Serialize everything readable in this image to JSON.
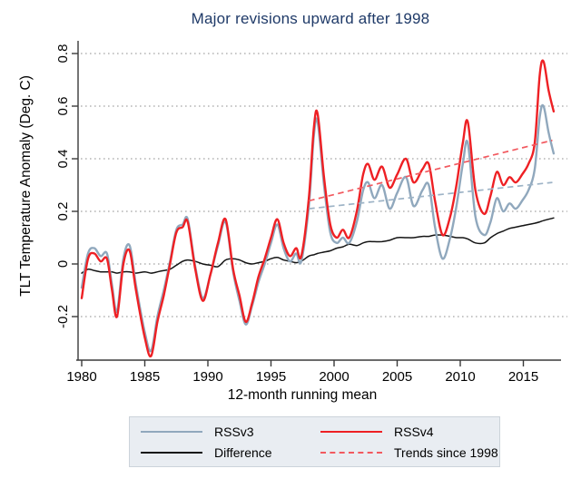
{
  "colors": {
    "title": "#1f3a68",
    "rssv3": "#90a8bd",
    "rssv4": "#ee2024",
    "difference": "#141414",
    "trend_v4": "#f2595f",
    "trend_v3": "#9db3c6",
    "grid": "#8f8f8f",
    "axis": "#3a3a3a",
    "legend_bg": "#e9edf2",
    "legend_border": "#ccd3da"
  },
  "legend": {
    "items": [
      {
        "label": "RSSv3",
        "color_key": "rssv3",
        "style": "solid"
      },
      {
        "label": "RSSv4",
        "color_key": "rssv4",
        "style": "solid"
      },
      {
        "label": "Difference",
        "color_key": "difference",
        "style": "solid"
      },
      {
        "label": "Trends since 1998",
        "color_key": "trend_v4",
        "style": "dashed"
      }
    ]
  },
  "chart_data": {
    "type": "line",
    "title": "Major revisions upward after 1998",
    "xlabel": "12-month running mean",
    "ylabel": "TLT Temperature Anomaly (Deg. C)",
    "x_ticks": [
      1980,
      1985,
      1990,
      1995,
      2000,
      2005,
      2010,
      2015
    ],
    "y_ticks": [
      -0.2,
      0,
      0.2,
      0.4,
      0.6,
      0.8
    ],
    "y_tick_labels": [
      "-0.2",
      "0",
      "0.2",
      "0.4",
      "0.6",
      "0.8"
    ],
    "xlim": [
      1979.6,
      2018.0
    ],
    "ylim": [
      -0.37,
      0.85
    ],
    "grid": "dotted-horizontal",
    "legend_position": "bottom",
    "x": [
      1980,
      1980.5,
      1981,
      1981.5,
      1982,
      1982.4,
      1982.8,
      1983.3,
      1983.8,
      1984.3,
      1985,
      1985.5,
      1986,
      1986.5,
      1987,
      1987.5,
      1988,
      1988.4,
      1989,
      1989.6,
      1990.2,
      1990.8,
      1991.4,
      1992,
      1992.5,
      1993,
      1993.5,
      1994,
      1994.5,
      1995,
      1995.5,
      1996,
      1996.5,
      1997,
      1997.4,
      1998,
      1998.4,
      1998.7,
      1999.2,
      1999.7,
      2000.2,
      2000.7,
      2001.2,
      2001.8,
      2002.3,
      2002.7,
      2003.2,
      2003.8,
      2004.4,
      2005,
      2005.7,
      2006.3,
      2007,
      2007.5,
      2008,
      2008.6,
      2009.2,
      2009.7,
      2010.2,
      2010.6,
      2011.2,
      2011.9,
      2012.4,
      2012.9,
      2013.4,
      2013.9,
      2014.4,
      2014.9,
      2015.4,
      2015.9,
      2016.3,
      2016.6,
      2017,
      2017.4
    ],
    "series": [
      {
        "name": "Difference",
        "color_key": "difference",
        "width": 1.5,
        "dash": null,
        "values": [
          -0.035,
          -0.02,
          -0.025,
          -0.03,
          -0.03,
          -0.03,
          -0.035,
          -0.03,
          -0.03,
          -0.035,
          -0.03,
          -0.035,
          -0.03,
          -0.025,
          -0.02,
          -0.005,
          0.01,
          0.015,
          0.01,
          0.0,
          -0.005,
          -0.01,
          0.015,
          0.02,
          0.015,
          0.005,
          0.0,
          0.005,
          0.01,
          0.02,
          0.025,
          0.015,
          0.01,
          0.005,
          0.01,
          0.03,
          0.035,
          0.04,
          0.045,
          0.05,
          0.06,
          0.065,
          0.075,
          0.07,
          0.08,
          0.085,
          0.085,
          0.085,
          0.09,
          0.1,
          0.1,
          0.1,
          0.105,
          0.105,
          0.11,
          0.11,
          0.105,
          0.1,
          0.1,
          0.095,
          0.08,
          0.08,
          0.1,
          0.115,
          0.125,
          0.135,
          0.14,
          0.145,
          0.15,
          0.155,
          0.16,
          0.165,
          0.17,
          0.175
        ]
      },
      {
        "name": "RSSv3",
        "color_key": "rssv3",
        "width": 2.4,
        "dash": null,
        "values": [
          -0.09,
          0.04,
          0.06,
          0.03,
          0.04,
          -0.08,
          -0.18,
          0.02,
          0.07,
          -0.08,
          -0.26,
          -0.33,
          -0.2,
          -0.1,
          0.01,
          0.13,
          0.15,
          0.17,
          -0.01,
          -0.13,
          -0.04,
          0.07,
          0.16,
          -0.03,
          -0.14,
          -0.23,
          -0.16,
          -0.07,
          0.0,
          0.08,
          0.15,
          0.06,
          0.01,
          0.04,
          0.01,
          0.22,
          0.49,
          0.54,
          0.3,
          0.12,
          0.08,
          0.1,
          0.08,
          0.16,
          0.28,
          0.31,
          0.25,
          0.3,
          0.21,
          0.27,
          0.33,
          0.22,
          0.28,
          0.3,
          0.14,
          0.02,
          0.1,
          0.22,
          0.38,
          0.46,
          0.18,
          0.11,
          0.16,
          0.25,
          0.2,
          0.23,
          0.21,
          0.24,
          0.28,
          0.36,
          0.56,
          0.6,
          0.5,
          0.42
        ]
      },
      {
        "name": "RSSv4",
        "color_key": "rssv4",
        "width": 2.4,
        "dash": null,
        "values": [
          -0.13,
          0.02,
          0.04,
          0.01,
          0.02,
          -0.1,
          -0.2,
          0.0,
          0.05,
          -0.1,
          -0.28,
          -0.35,
          -0.22,
          -0.12,
          0.0,
          0.12,
          0.14,
          0.16,
          -0.02,
          -0.14,
          -0.04,
          0.08,
          0.17,
          -0.02,
          -0.12,
          -0.22,
          -0.15,
          -0.05,
          0.02,
          0.1,
          0.17,
          0.08,
          0.03,
          0.06,
          0.03,
          0.25,
          0.52,
          0.57,
          0.33,
          0.15,
          0.1,
          0.13,
          0.1,
          0.2,
          0.34,
          0.38,
          0.32,
          0.37,
          0.29,
          0.34,
          0.4,
          0.31,
          0.36,
          0.38,
          0.24,
          0.11,
          0.18,
          0.3,
          0.46,
          0.54,
          0.28,
          0.19,
          0.26,
          0.35,
          0.3,
          0.33,
          0.31,
          0.34,
          0.38,
          0.46,
          0.72,
          0.77,
          0.66,
          0.58
        ]
      }
    ],
    "trends": [
      {
        "name": "RSSv3 trend since 1998",
        "color_key": "trend_v3",
        "width": 1.7,
        "x": [
          1998,
          2017.3
        ],
        "values": [
          0.21,
          0.31
        ]
      },
      {
        "name": "RSSv4 trend since 1998",
        "color_key": "trend_v4",
        "width": 1.7,
        "x": [
          1998,
          2017.3
        ],
        "values": [
          0.24,
          0.47
        ]
      }
    ]
  }
}
